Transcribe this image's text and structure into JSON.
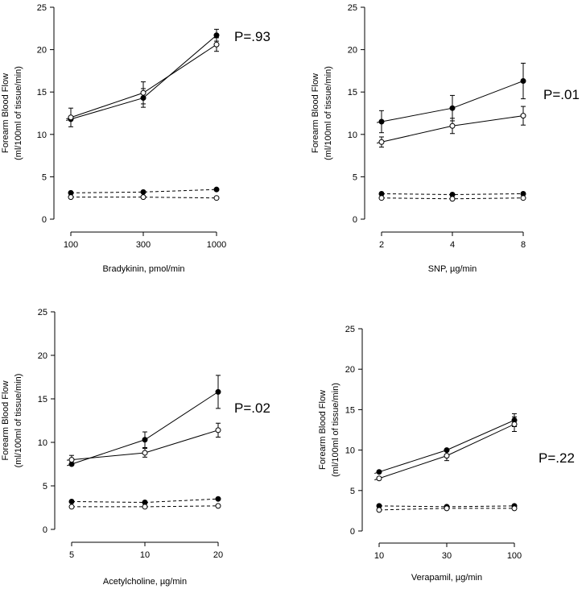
{
  "chart_data": [
    {
      "type": "line",
      "ylabel": [
        "Forearm Blood Flow",
        "(ml/100ml of tissue/min)"
      ],
      "xlabel": "Bradykinin, pmol/min",
      "categories": [
        "100",
        "300",
        "1000"
      ],
      "ylim": [
        0,
        25
      ],
      "yticks": [
        0,
        5,
        10,
        15,
        20,
        25
      ],
      "pvalue": "P=.93",
      "series": [
        {
          "style": "solid",
          "marker": "filled",
          "values": [
            11.8,
            14.3,
            21.7
          ],
          "err": [
            0,
            1.1,
            0.7
          ]
        },
        {
          "style": "solid",
          "marker": "open",
          "values": [
            12.0,
            14.9,
            20.6
          ],
          "err": [
            1.1,
            1.3,
            0.8
          ]
        },
        {
          "style": "dashed",
          "marker": "filled",
          "values": [
            3.1,
            3.2,
            3.5
          ],
          "err": [
            0,
            0,
            0
          ]
        },
        {
          "style": "dashed",
          "marker": "open",
          "values": [
            2.6,
            2.6,
            2.5
          ],
          "err": [
            0,
            0,
            0
          ]
        }
      ]
    },
    {
      "type": "line",
      "ylabel": [
        "Forearm Blood Flow",
        "(ml/100ml of tissue/min)"
      ],
      "xlabel": "SNP, µg/min",
      "categories": [
        "2",
        "4",
        "8"
      ],
      "ylim": [
        0,
        25
      ],
      "yticks": [
        0,
        5,
        10,
        15,
        20,
        25
      ],
      "pvalue": "P=.01",
      "series": [
        {
          "style": "solid",
          "marker": "filled",
          "values": [
            11.5,
            13.1,
            16.3
          ],
          "err": [
            1.3,
            1.5,
            2.1
          ]
        },
        {
          "style": "solid",
          "marker": "open",
          "values": [
            9.1,
            11.0,
            12.2
          ],
          "err": [
            0.6,
            0.9,
            1.1
          ]
        },
        {
          "style": "dashed",
          "marker": "filled",
          "values": [
            3.0,
            2.9,
            3.0
          ],
          "err": [
            0,
            0,
            0
          ]
        },
        {
          "style": "dashed",
          "marker": "open",
          "values": [
            2.5,
            2.4,
            2.5
          ],
          "err": [
            0,
            0,
            0
          ]
        }
      ]
    },
    {
      "type": "line",
      "ylabel": [
        "Forearm Blood Flow",
        "(ml/100ml of tissue/min)"
      ],
      "xlabel": "Acetylcholine, µg/min",
      "categories": [
        "5",
        "10",
        "20"
      ],
      "ylim": [
        0,
        25
      ],
      "yticks": [
        0,
        5,
        10,
        15,
        20,
        25
      ],
      "pvalue": "P=.02",
      "series": [
        {
          "style": "solid",
          "marker": "filled",
          "values": [
            7.5,
            10.3,
            15.8
          ],
          "err": [
            0,
            0.9,
            1.9
          ]
        },
        {
          "style": "solid",
          "marker": "open",
          "values": [
            8.0,
            8.8,
            11.4
          ],
          "err": [
            0.5,
            0.5,
            0.8
          ]
        },
        {
          "style": "dashed",
          "marker": "filled",
          "values": [
            3.2,
            3.1,
            3.5
          ],
          "err": [
            0,
            0,
            0
          ]
        },
        {
          "style": "dashed",
          "marker": "open",
          "values": [
            2.6,
            2.6,
            2.7
          ],
          "err": [
            0,
            0,
            0
          ]
        }
      ]
    },
    {
      "type": "line",
      "ylabel": [
        "Forearm Blood Flow",
        "(ml/100ml of tissue/min)"
      ],
      "xlabel": "Verapamil, µg/min",
      "categories": [
        "10",
        "30",
        "100"
      ],
      "ylim": [
        0,
        25
      ],
      "yticks": [
        0,
        5,
        10,
        15,
        20,
        25
      ],
      "pvalue": "P=.22",
      "series": [
        {
          "style": "solid",
          "marker": "filled",
          "values": [
            7.3,
            10.0,
            13.7
          ],
          "err": [
            0,
            0,
            0.8
          ]
        },
        {
          "style": "solid",
          "marker": "open",
          "values": [
            6.5,
            9.3,
            13.2
          ],
          "err": [
            0,
            0.6,
            0.9
          ]
        },
        {
          "style": "dashed",
          "marker": "filled",
          "values": [
            3.1,
            3.0,
            3.1
          ],
          "err": [
            0,
            0,
            0
          ]
        },
        {
          "style": "dashed",
          "marker": "open",
          "values": [
            2.6,
            2.8,
            2.8
          ],
          "err": [
            0,
            0,
            0
          ]
        }
      ]
    }
  ]
}
